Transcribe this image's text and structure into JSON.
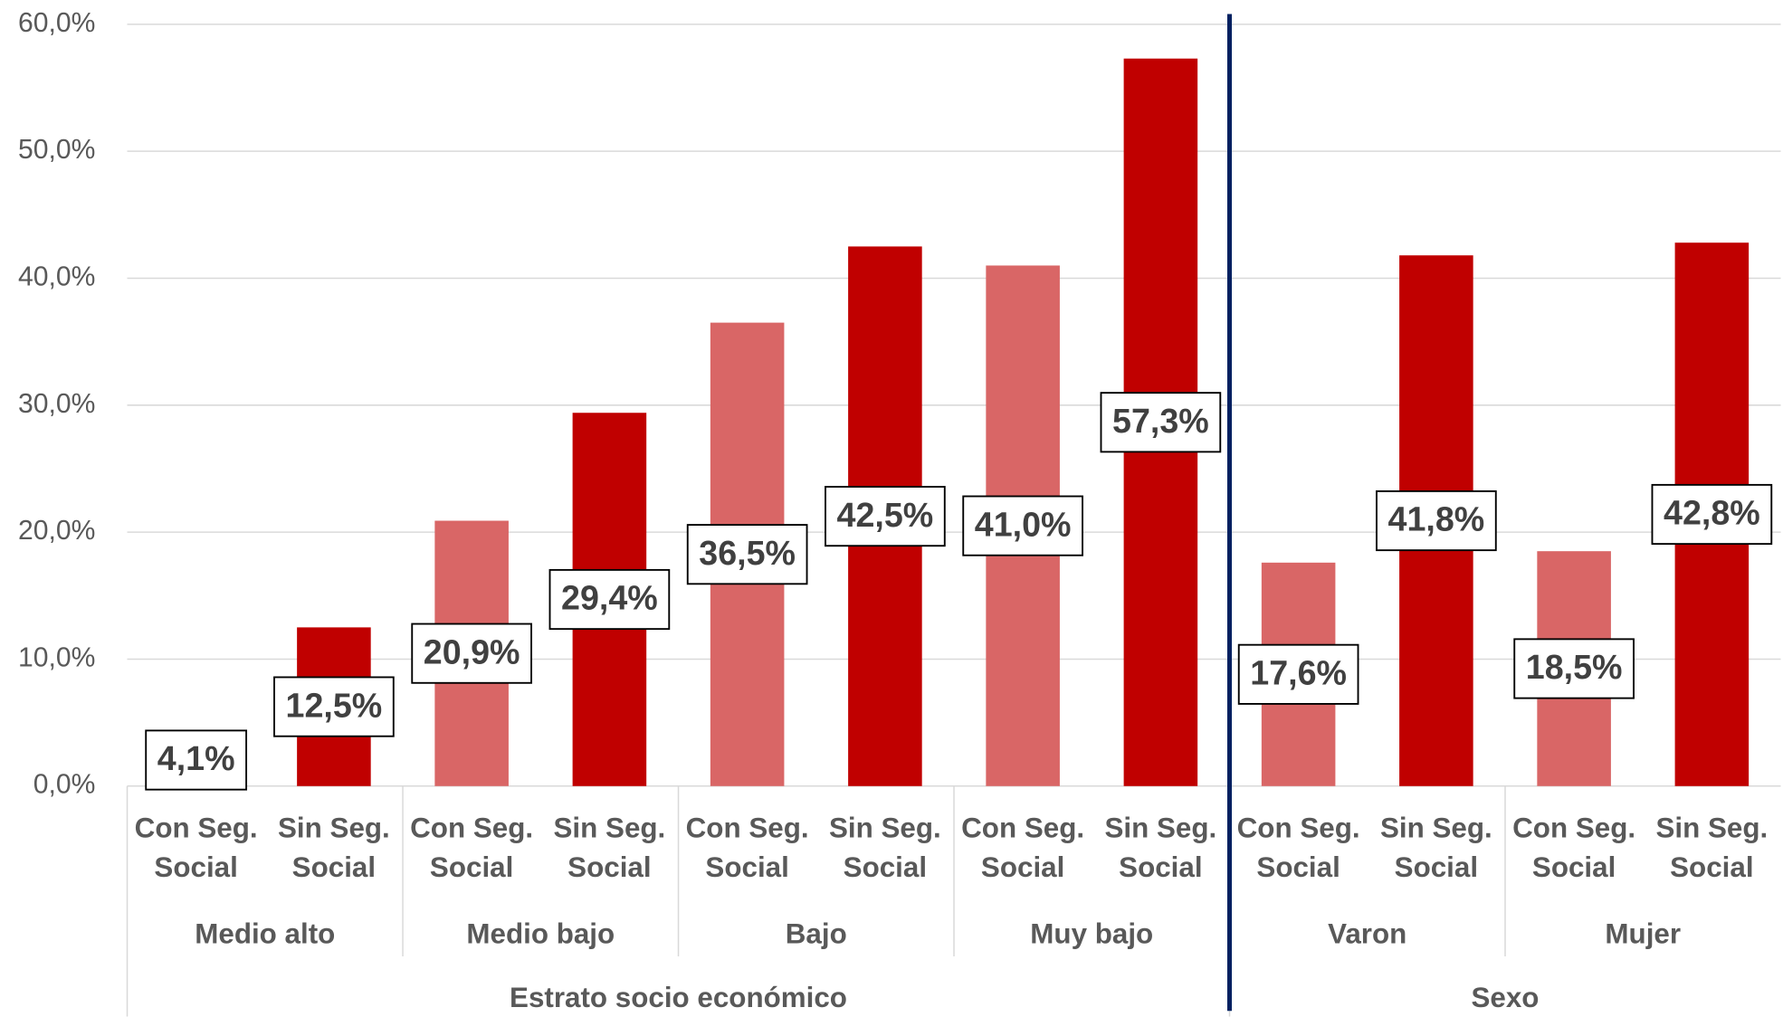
{
  "chart_data": {
    "type": "bar",
    "category_groups": [
      {
        "name": "Estrato socio económico",
        "groups": [
          {
            "name": "Medio alto",
            "categories": [
              "Con Seg. Social",
              "Sin Seg. Social"
            ]
          },
          {
            "name": "Medio bajo",
            "categories": [
              "Con Seg. Social",
              "Sin Seg. Social"
            ]
          },
          {
            "name": "Bajo",
            "categories": [
              "Con Seg. Social",
              "Sin Seg. Social"
            ]
          },
          {
            "name": "Muy bajo",
            "categories": [
              "Con Seg. Social",
              "Sin Seg. Social"
            ]
          }
        ]
      },
      {
        "name": "Sexo",
        "groups": [
          {
            "name": "Varon",
            "categories": [
              "Con Seg. Social",
              "Sin Seg. Social"
            ]
          },
          {
            "name": "Mujer",
            "categories": [
              "Con Seg. Social",
              "Sin Seg. Social"
            ]
          }
        ]
      }
    ],
    "values": [
      4.1,
      12.5,
      20.9,
      29.4,
      36.5,
      42.5,
      41.0,
      57.3,
      17.6,
      41.8,
      18.5,
      42.8
    ],
    "value_labels": [
      "4,1%",
      "12,5%",
      "20,9%",
      "29,4%",
      "36,5%",
      "42,5%",
      "41,0%",
      "57,3%",
      "17,6%",
      "41,8%",
      "18,5%",
      "42,8%"
    ],
    "colors": [
      "#d96666",
      "#c00000",
      "#d96666",
      "#c00000",
      "#d96666",
      "#c00000",
      "#d96666",
      "#c00000",
      "#d96666",
      "#c00000",
      "#d96666",
      "#c00000"
    ],
    "ylim": [
      0,
      60
    ],
    "yticks": [
      {
        "value": 0,
        "label": "0,0%"
      },
      {
        "value": 10,
        "label": "10,0%"
      },
      {
        "value": 20,
        "label": "20,0%"
      },
      {
        "value": 30,
        "label": "30,0%"
      },
      {
        "value": 40,
        "label": "40,0%"
      },
      {
        "value": 50,
        "label": "50,0%"
      },
      {
        "value": 60,
        "label": "60,0%"
      }
    ],
    "grid": true,
    "divider_color": "#002060"
  }
}
